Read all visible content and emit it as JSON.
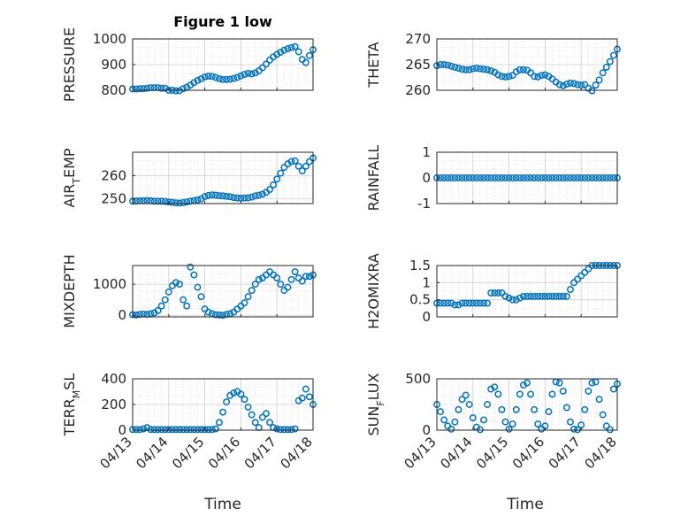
{
  "figure": {
    "title": "Figure 1 low",
    "xlabel": "Time",
    "marker_color": "#0072BD",
    "x_tick_labels": [
      "04/13",
      "04/14",
      "04/15",
      "04/16",
      "04/17",
      "04/18"
    ]
  },
  "chart_data": [
    {
      "type": "scatter",
      "ylabel": "PRESSURE",
      "ylabel_sub": "",
      "ylim": [
        800,
        1000
      ],
      "yticks": [
        800,
        900,
        1000
      ],
      "xlim": [
        0,
        5
      ],
      "grid": true,
      "minor_grid": true,
      "x": [
        0.0,
        0.1,
        0.2,
        0.3,
        0.4,
        0.5,
        0.6,
        0.7,
        0.8,
        0.9,
        1.0,
        1.1,
        1.2,
        1.3,
        1.4,
        1.5,
        1.6,
        1.7,
        1.8,
        1.9,
        2.0,
        2.1,
        2.2,
        2.3,
        2.4,
        2.5,
        2.6,
        2.7,
        2.8,
        2.9,
        3.0,
        3.1,
        3.2,
        3.3,
        3.4,
        3.5,
        3.6,
        3.7,
        3.8,
        3.9,
        4.0,
        4.1,
        4.2,
        4.3,
        4.4,
        4.5,
        4.6,
        4.7,
        4.8,
        4.9,
        5.0
      ],
      "y": [
        805,
        805,
        806,
        806,
        808,
        810,
        810,
        810,
        808,
        808,
        800,
        800,
        798,
        798,
        806,
        812,
        820,
        830,
        838,
        845,
        852,
        855,
        854,
        850,
        845,
        842,
        842,
        843,
        846,
        850,
        856,
        862,
        866,
        864,
        868,
        876,
        888,
        902,
        918,
        930,
        940,
        948,
        956,
        962,
        966,
        970,
        950,
        920,
        908,
        935,
        958
      ]
    },
    {
      "type": "scatter",
      "ylabel": "THETA",
      "ylabel_sub": "",
      "ylim": [
        260,
        270
      ],
      "yticks": [
        260,
        265,
        270
      ],
      "xlim": [
        0,
        5
      ],
      "grid": true,
      "minor_grid": true,
      "x": [
        0.0,
        0.1,
        0.2,
        0.3,
        0.4,
        0.5,
        0.6,
        0.7,
        0.8,
        0.9,
        1.0,
        1.1,
        1.2,
        1.3,
        1.4,
        1.5,
        1.6,
        1.7,
        1.8,
        1.9,
        2.0,
        2.1,
        2.2,
        2.3,
        2.4,
        2.5,
        2.6,
        2.7,
        2.8,
        2.9,
        3.0,
        3.1,
        3.2,
        3.3,
        3.4,
        3.5,
        3.6,
        3.7,
        3.8,
        3.9,
        4.0,
        4.1,
        4.2,
        4.3,
        4.4,
        4.5,
        4.6,
        4.7,
        4.8,
        4.9,
        5.0
      ],
      "y": [
        264.8,
        265.0,
        265.0,
        264.9,
        264.7,
        264.5,
        264.3,
        264.1,
        264.0,
        264.0,
        264.2,
        264.3,
        264.2,
        264.1,
        264.0,
        263.8,
        263.5,
        263.0,
        262.7,
        262.6,
        262.7,
        262.9,
        263.6,
        264.0,
        264.0,
        263.9,
        263.4,
        262.7,
        262.6,
        262.9,
        263.0,
        262.7,
        262.2,
        261.6,
        261.1,
        260.9,
        261.2,
        261.4,
        261.3,
        261.1,
        261.0,
        261.1,
        260.4,
        259.9,
        261.0,
        262.0,
        263.4,
        264.5,
        265.6,
        266.8,
        268.0
      ]
    },
    {
      "type": "scatter",
      "ylabel": "AIR",
      "ylabel_sub": "T",
      "ylabel_suffix": "EMP",
      "ylim": [
        248,
        270
      ],
      "yticks": [
        250,
        260
      ],
      "xlim": [
        0,
        5
      ],
      "grid": true,
      "minor_grid": true,
      "x": [
        0.0,
        0.1,
        0.2,
        0.3,
        0.4,
        0.5,
        0.6,
        0.7,
        0.8,
        0.9,
        1.0,
        1.1,
        1.2,
        1.3,
        1.4,
        1.5,
        1.6,
        1.7,
        1.8,
        1.9,
        2.0,
        2.1,
        2.2,
        2.3,
        2.4,
        2.5,
        2.6,
        2.7,
        2.8,
        2.9,
        3.0,
        3.1,
        3.2,
        3.3,
        3.4,
        3.5,
        3.6,
        3.7,
        3.8,
        3.9,
        4.0,
        4.1,
        4.2,
        4.3,
        4.4,
        4.5,
        4.6,
        4.7,
        4.8,
        4.9,
        5.0
      ],
      "y": [
        249.0,
        249.1,
        249.2,
        249.2,
        249.3,
        249.2,
        249.0,
        249.0,
        249.0,
        248.9,
        248.7,
        248.5,
        248.3,
        248.2,
        248.4,
        248.7,
        249.0,
        249.3,
        249.6,
        250.0,
        251.0,
        251.5,
        251.7,
        251.6,
        251.4,
        251.3,
        251.1,
        250.9,
        250.6,
        250.4,
        250.3,
        250.4,
        250.5,
        250.8,
        251.3,
        251.6,
        252.0,
        252.8,
        254.0,
        256.0,
        258.5,
        261.0,
        263.5,
        265.0,
        266.0,
        266.3,
        264.0,
        262.0,
        264.0,
        266.0,
        267.5
      ]
    },
    {
      "type": "scatter",
      "ylabel": "RAINFALL",
      "ylabel_sub": "",
      "ylim": [
        -1,
        1
      ],
      "yticks": [
        -1,
        0,
        1
      ],
      "xlim": [
        0,
        5
      ],
      "grid": true,
      "minor_grid": true,
      "x": [
        0.0,
        0.1,
        0.2,
        0.3,
        0.4,
        0.5,
        0.6,
        0.7,
        0.8,
        0.9,
        1.0,
        1.1,
        1.2,
        1.3,
        1.4,
        1.5,
        1.6,
        1.7,
        1.8,
        1.9,
        2.0,
        2.1,
        2.2,
        2.3,
        2.4,
        2.5,
        2.6,
        2.7,
        2.8,
        2.9,
        3.0,
        3.1,
        3.2,
        3.3,
        3.4,
        3.5,
        3.6,
        3.7,
        3.8,
        3.9,
        4.0,
        4.1,
        4.2,
        4.3,
        4.4,
        4.5,
        4.6,
        4.7,
        4.8,
        4.9,
        5.0
      ],
      "y": [
        0,
        0,
        0,
        0,
        0,
        0,
        0,
        0,
        0,
        0,
        0,
        0,
        0,
        0,
        0,
        0,
        0,
        0,
        0,
        0,
        0,
        0,
        0,
        0,
        0,
        0,
        0,
        0,
        0,
        0,
        0,
        0,
        0,
        0,
        0,
        0,
        0,
        0,
        0,
        0,
        0,
        0,
        0,
        0,
        0,
        0,
        0,
        0,
        0,
        0,
        0
      ]
    },
    {
      "type": "scatter",
      "ylabel": "MIXDEPTH",
      "ylabel_sub": "",
      "ylim": [
        -50,
        1600
      ],
      "yticks": [
        0,
        1000
      ],
      "xlim": [
        0,
        5
      ],
      "grid": true,
      "minor_grid": true,
      "x": [
        0.0,
        0.1,
        0.2,
        0.3,
        0.4,
        0.5,
        0.6,
        0.7,
        0.8,
        0.9,
        1.0,
        1.1,
        1.2,
        1.3,
        1.4,
        1.5,
        1.6,
        1.7,
        1.8,
        1.9,
        2.0,
        2.1,
        2.2,
        2.3,
        2.4,
        2.5,
        2.6,
        2.7,
        2.8,
        2.9,
        3.0,
        3.1,
        3.2,
        3.3,
        3.4,
        3.5,
        3.6,
        3.7,
        3.8,
        3.9,
        4.0,
        4.1,
        4.2,
        4.3,
        4.4,
        4.5,
        4.6,
        4.7,
        4.8,
        4.9,
        5.0
      ],
      "y": [
        20,
        10,
        30,
        40,
        30,
        50,
        80,
        150,
        300,
        500,
        750,
        950,
        1050,
        1000,
        500,
        300,
        1550,
        1300,
        900,
        600,
        200,
        100,
        50,
        20,
        10,
        0,
        30,
        50,
        100,
        200,
        300,
        400,
        600,
        800,
        1000,
        1150,
        1200,
        1300,
        1400,
        1300,
        1200,
        1000,
        800,
        900,
        1150,
        1400,
        1200,
        1100,
        1250,
        1250,
        1300
      ]
    },
    {
      "type": "scatter",
      "ylabel": "H2OMIXRA",
      "ylabel_sub": "",
      "ylim": [
        0,
        1.5
      ],
      "yticks": [
        0,
        0.5,
        1,
        1.5
      ],
      "xlim": [
        0,
        5
      ],
      "grid": true,
      "minor_grid": true,
      "x": [
        0.0,
        0.1,
        0.2,
        0.3,
        0.4,
        0.5,
        0.6,
        0.7,
        0.8,
        0.9,
        1.0,
        1.1,
        1.2,
        1.3,
        1.4,
        1.5,
        1.6,
        1.7,
        1.8,
        1.9,
        2.0,
        2.1,
        2.2,
        2.3,
        2.4,
        2.5,
        2.6,
        2.7,
        2.8,
        2.9,
        3.0,
        3.1,
        3.2,
        3.3,
        3.4,
        3.5,
        3.6,
        3.7,
        3.8,
        3.9,
        4.0,
        4.1,
        4.2,
        4.3,
        4.4,
        4.5,
        4.6,
        4.7,
        4.8,
        4.9,
        5.0
      ],
      "y": [
        0.4,
        0.4,
        0.4,
        0.4,
        0.4,
        0.35,
        0.35,
        0.4,
        0.4,
        0.4,
        0.4,
        0.4,
        0.4,
        0.4,
        0.4,
        0.7,
        0.7,
        0.7,
        0.7,
        0.6,
        0.55,
        0.5,
        0.5,
        0.55,
        0.6,
        0.6,
        0.6,
        0.6,
        0.6,
        0.6,
        0.6,
        0.6,
        0.6,
        0.6,
        0.6,
        0.6,
        0.6,
        0.8,
        1.0,
        1.1,
        1.2,
        1.3,
        1.4,
        1.5,
        1.5,
        1.5,
        1.5,
        1.5,
        1.5,
        1.5,
        1.5
      ]
    },
    {
      "type": "scatter",
      "ylabel": "TERR",
      "ylabel_sub": "M",
      "ylabel_suffix": "SL",
      "ylim": [
        0,
        400
      ],
      "yticks": [
        0,
        200,
        400
      ],
      "xlim": [
        0,
        5
      ],
      "grid": true,
      "minor_grid": true,
      "x": [
        0.0,
        0.1,
        0.2,
        0.3,
        0.4,
        0.5,
        0.6,
        0.7,
        0.8,
        0.9,
        1.0,
        1.1,
        1.2,
        1.3,
        1.4,
        1.5,
        1.6,
        1.7,
        1.8,
        1.9,
        2.0,
        2.1,
        2.2,
        2.3,
        2.4,
        2.5,
        2.6,
        2.7,
        2.8,
        2.9,
        3.0,
        3.1,
        3.2,
        3.3,
        3.4,
        3.5,
        3.6,
        3.7,
        3.8,
        3.9,
        4.0,
        4.1,
        4.2,
        4.3,
        4.4,
        4.5,
        4.6,
        4.7,
        4.8,
        4.9,
        5.0
      ],
      "y": [
        5,
        5,
        5,
        10,
        20,
        5,
        5,
        5,
        5,
        5,
        5,
        5,
        5,
        5,
        5,
        5,
        5,
        5,
        5,
        5,
        5,
        5,
        5,
        10,
        60,
        140,
        220,
        270,
        290,
        300,
        280,
        240,
        180,
        120,
        60,
        20,
        100,
        130,
        60,
        20,
        10,
        5,
        5,
        5,
        5,
        10,
        230,
        250,
        320,
        260,
        200
      ]
    },
    {
      "type": "scatter",
      "ylabel": "SUN",
      "ylabel_sub": "F",
      "ylabel_suffix": "LUX",
      "ylim": [
        0,
        500
      ],
      "yticks": [
        0,
        500
      ],
      "xlim": [
        0,
        5
      ],
      "grid": true,
      "minor_grid": true,
      "x": [
        0.0,
        0.1,
        0.2,
        0.3,
        0.4,
        0.5,
        0.6,
        0.7,
        0.8,
        0.9,
        1.0,
        1.1,
        1.2,
        1.3,
        1.4,
        1.5,
        1.6,
        1.7,
        1.8,
        1.9,
        2.0,
        2.1,
        2.2,
        2.3,
        2.4,
        2.5,
        2.6,
        2.7,
        2.8,
        2.9,
        3.0,
        3.1,
        3.2,
        3.3,
        3.4,
        3.5,
        3.6,
        3.7,
        3.8,
        3.9,
        4.0,
        4.1,
        4.2,
        4.3,
        4.4,
        4.5,
        4.6,
        4.7,
        4.8,
        4.9,
        5.0
      ],
      "y": [
        250,
        180,
        100,
        40,
        10,
        80,
        200,
        300,
        340,
        250,
        120,
        30,
        5,
        100,
        250,
        400,
        420,
        350,
        200,
        80,
        10,
        60,
        200,
        350,
        440,
        460,
        350,
        200,
        60,
        10,
        40,
        180,
        350,
        470,
        460,
        380,
        220,
        80,
        10,
        5,
        50,
        200,
        380,
        460,
        470,
        300,
        150,
        40,
        5,
        400,
        450
      ]
    }
  ]
}
